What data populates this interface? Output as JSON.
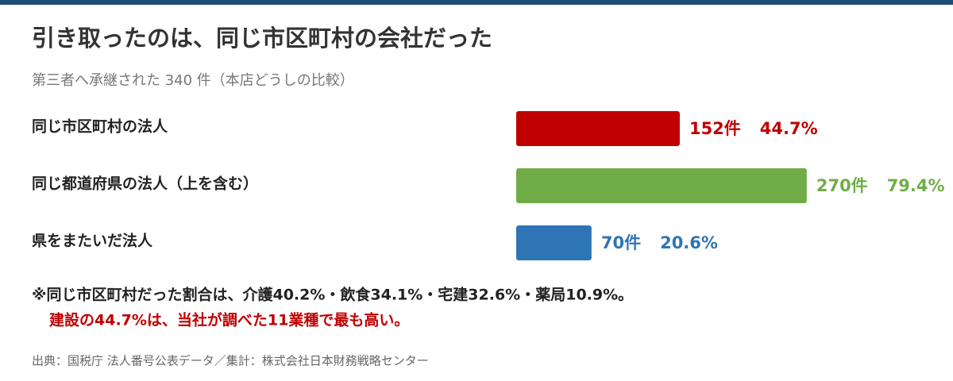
{
  "chart_data": {
    "type": "bar",
    "title": "引き取ったのは、同じ市区町村の会社だった",
    "subtitle": "第三者へ承継された 340 件（本店どうしの比較）",
    "categories": [
      "同じ市区町村の法人",
      "同じ都道府県の法人（上を含む）",
      "県をまたいだ法人"
    ],
    "values": [
      152,
      270,
      70
    ],
    "value_labels": [
      "152件",
      "270件",
      "70件"
    ],
    "share_labels": [
      "44.7%",
      "79.4%",
      "20.6%"
    ],
    "colors": [
      "#c00000",
      "#70ad47",
      "#2e75b6"
    ],
    "notes": [
      "※同じ市区町村だった割合は、介護40.2%・飲食34.1%・宅建32.6%・薬局10.9%。",
      "建設の44.7%は、当社が調べた11業種で最も高い。"
    ],
    "source": "出典：国税庁 法人番号公表データ／集計：株式会社日本財務戦略センター"
  }
}
